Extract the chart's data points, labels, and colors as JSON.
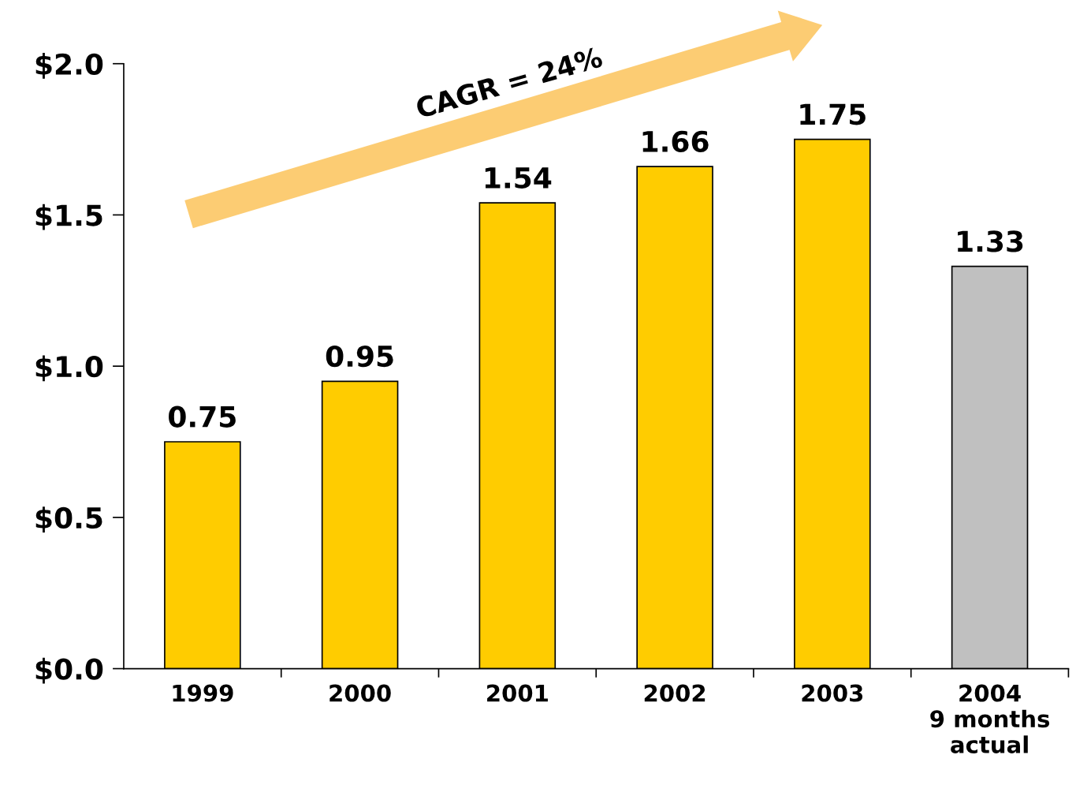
{
  "chart_data": {
    "type": "bar",
    "categories": [
      "1999",
      "2000",
      "2001",
      "2002",
      "2003",
      "2004\n9 months\nactual"
    ],
    "values": [
      0.75,
      0.95,
      1.54,
      1.66,
      1.75,
      1.33
    ],
    "colors": [
      "#ffcc00",
      "#ffcc00",
      "#ffcc00",
      "#ffcc00",
      "#ffcc00",
      "#c0c0c0"
    ],
    "ylim": [
      0,
      2.0
    ],
    "yticks": [
      {
        "value": 0,
        "label": "$0.0"
      },
      {
        "value": 0.5,
        "label": "$0.5"
      },
      {
        "value": 1.0,
        "label": "$1.0"
      },
      {
        "value": 1.5,
        "label": "$1.5"
      },
      {
        "value": 2.0,
        "label": "$2.0"
      }
    ],
    "data_labels": true,
    "grid": false,
    "legend": false,
    "annotations": [
      "CAGR = 24%"
    ]
  }
}
